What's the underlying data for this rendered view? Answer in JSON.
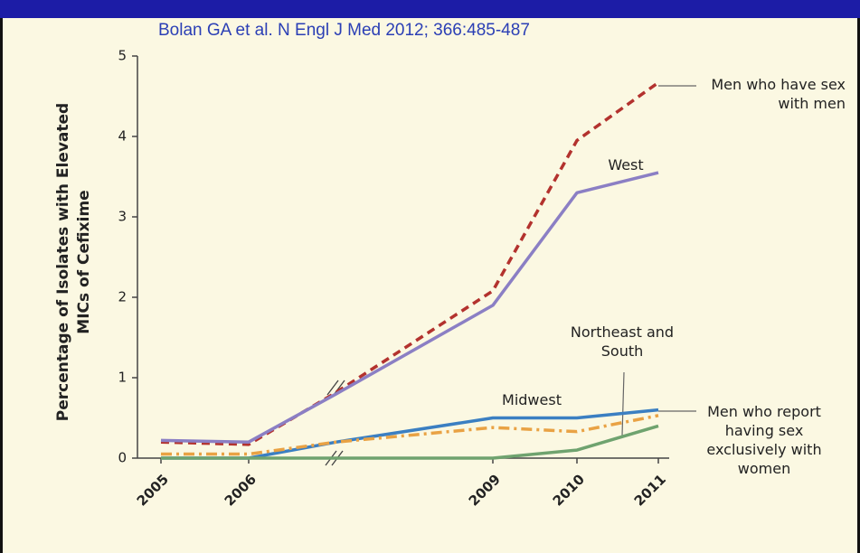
{
  "chart_data": {
    "type": "line",
    "citation": "Bolan GA et al. N Engl J Med 2012; 366:485-487",
    "ylabel": [
      "Percentage of Isolates with Elevated",
      "MICs of Cefixime"
    ],
    "categories": [
      "2005",
      "2006",
      null,
      "2009",
      "2010",
      "2011"
    ],
    "ylim": [
      0,
      5
    ],
    "yticks": [
      0,
      1,
      2,
      3,
      4,
      5
    ],
    "series": [
      {
        "name": "Men who have sex with men",
        "color": "#b3322e",
        "dash": "9,6",
        "values": [
          0.2,
          0.17,
          0.82,
          2.08,
          3.95,
          4.67
        ]
      },
      {
        "name": "West",
        "color": "#8b7fc4",
        "values": [
          0.22,
          0.2,
          0.8,
          1.9,
          3.3,
          3.55
        ]
      },
      {
        "name": "Midwest",
        "color": "#3b7fc2",
        "values": [
          0,
          0,
          0.2,
          0.5,
          0.5,
          0.6
        ]
      },
      {
        "name": "Northeast and South",
        "color": "#6fa36f",
        "values": [
          0,
          0,
          0,
          0,
          0.1,
          0.4
        ]
      },
      {
        "name": "Men who report having sex exclusively with women",
        "color": "#e9a244",
        "dash": "12,5,3,5",
        "values": [
          0.05,
          0.05,
          0.2,
          0.38,
          0.33,
          0.53
        ]
      }
    ]
  }
}
